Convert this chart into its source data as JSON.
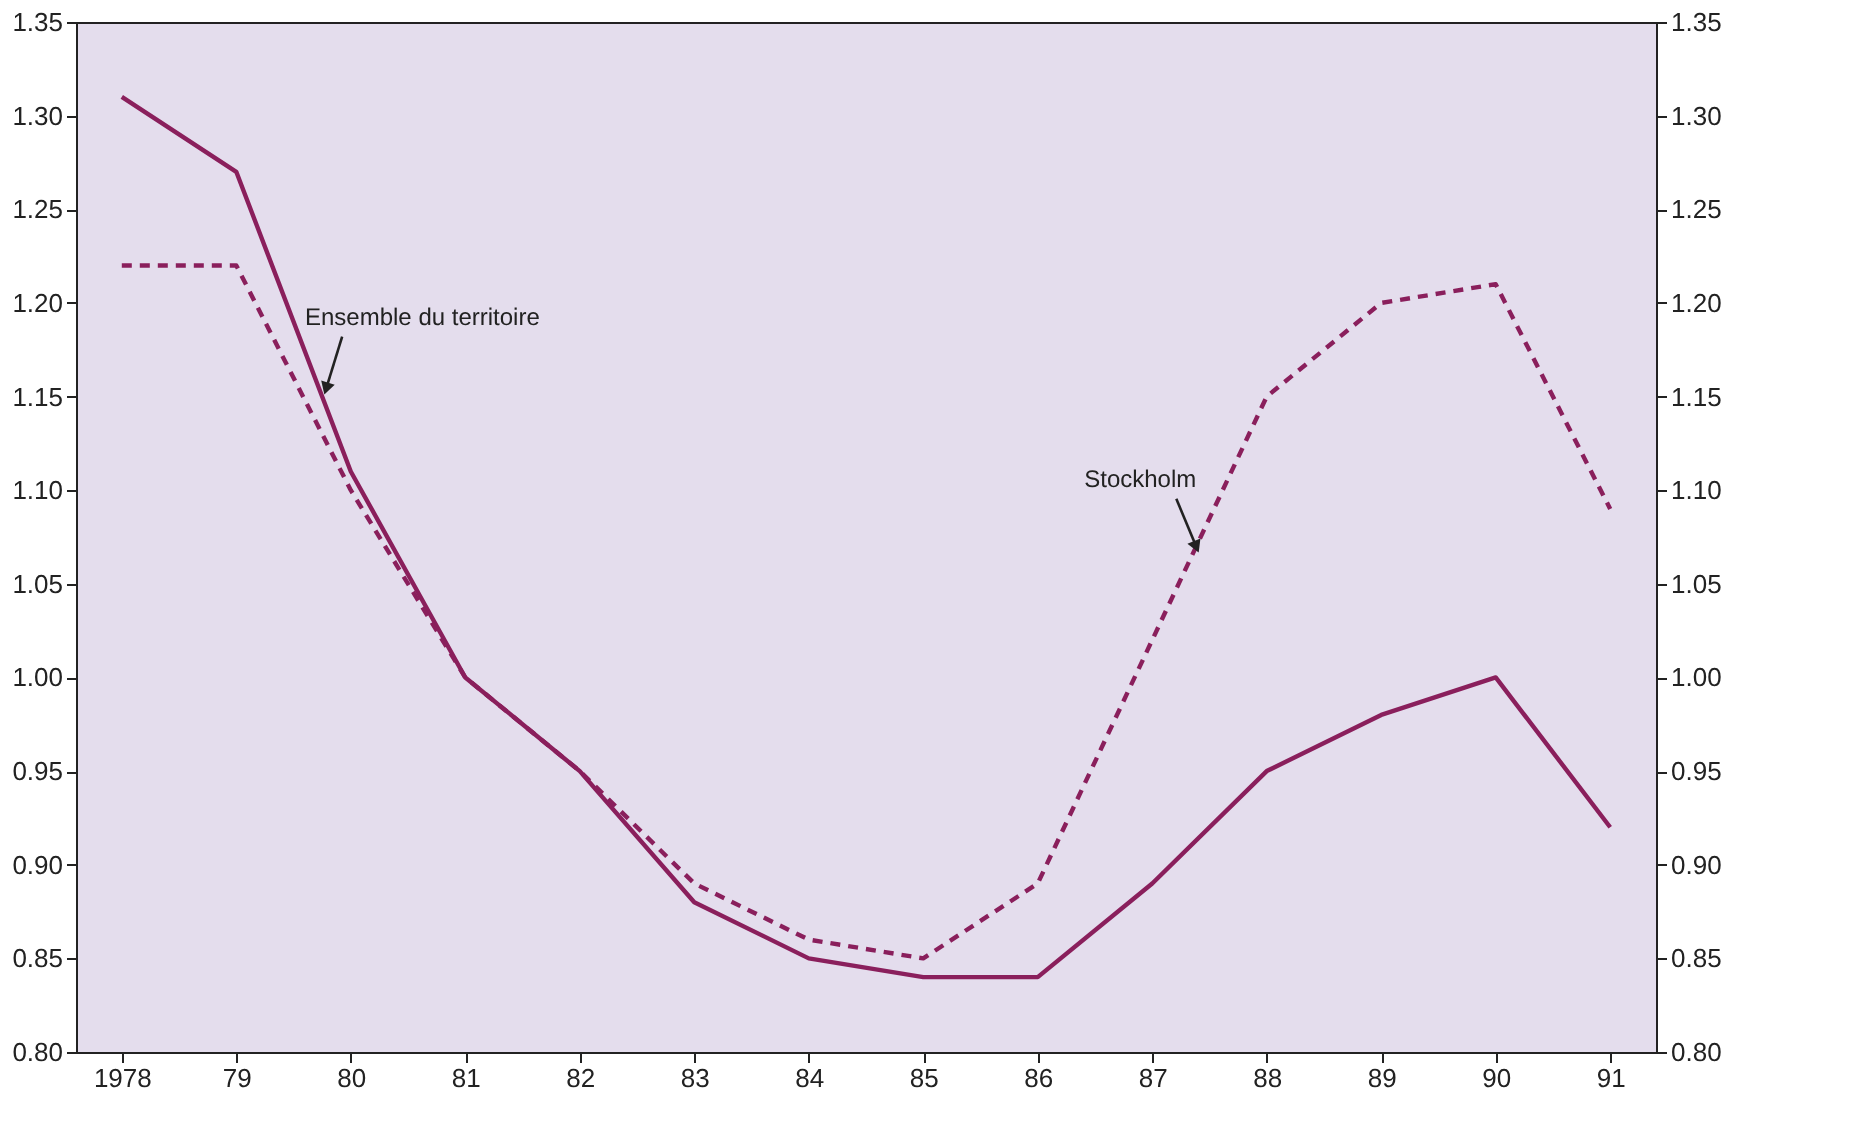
{
  "chart_data": {
    "type": "line",
    "categories": [
      "1978",
      "79",
      "80",
      "81",
      "82",
      "83",
      "84",
      "85",
      "86",
      "87",
      "88",
      "89",
      "90",
      "91"
    ],
    "series": [
      {
        "name": "Ensemble du territoire",
        "color": "#8a1f5c",
        "line_style": "solid",
        "values": [
          1.31,
          1.27,
          1.11,
          1.0,
          0.95,
          0.88,
          0.85,
          0.84,
          0.84,
          0.89,
          0.95,
          0.98,
          1.0,
          0.92
        ]
      },
      {
        "name": "Stockholm",
        "color": "#8a1f5c",
        "line_style": "dashed",
        "values": [
          1.22,
          1.22,
          1.1,
          1.0,
          0.95,
          0.89,
          0.86,
          0.85,
          0.89,
          1.02,
          1.15,
          1.2,
          1.21,
          1.09
        ]
      }
    ],
    "ylim": [
      0.8,
      1.35
    ],
    "yticks": [
      {
        "value": 0.8,
        "label": "0.80"
      },
      {
        "value": 0.85,
        "label": "0.85"
      },
      {
        "value": 0.9,
        "label": "0.90"
      },
      {
        "value": 0.95,
        "label": "0.95"
      },
      {
        "value": 1.0,
        "label": "1.00"
      },
      {
        "value": 1.05,
        "label": "1.05"
      },
      {
        "value": 1.1,
        "label": "1.10"
      },
      {
        "value": 1.15,
        "label": "1.15"
      },
      {
        "value": 1.2,
        "label": "1.20"
      },
      {
        "value": 1.25,
        "label": "1.25"
      },
      {
        "value": 1.3,
        "label": "1.30"
      },
      {
        "value": 1.35,
        "label": "1.35"
      }
    ],
    "y2lim": [
      0.8,
      1.35
    ],
    "y2ticks": [
      {
        "value": 0.8,
        "label": "0.80"
      },
      {
        "value": 0.85,
        "label": "0.85"
      },
      {
        "value": 0.9,
        "label": "0.90"
      },
      {
        "value": 0.95,
        "label": "0.95"
      },
      {
        "value": 1.0,
        "label": "1.00"
      },
      {
        "value": 1.05,
        "label": "1.05"
      },
      {
        "value": 1.1,
        "label": "1.10"
      },
      {
        "value": 1.15,
        "label": "1.15"
      },
      {
        "value": 1.2,
        "label": "1.20"
      },
      {
        "value": 1.25,
        "label": "1.25"
      },
      {
        "value": 1.3,
        "label": "1.30"
      },
      {
        "value": 1.35,
        "label": "1.35"
      }
    ],
    "grid": false,
    "marker": "none"
  }
}
